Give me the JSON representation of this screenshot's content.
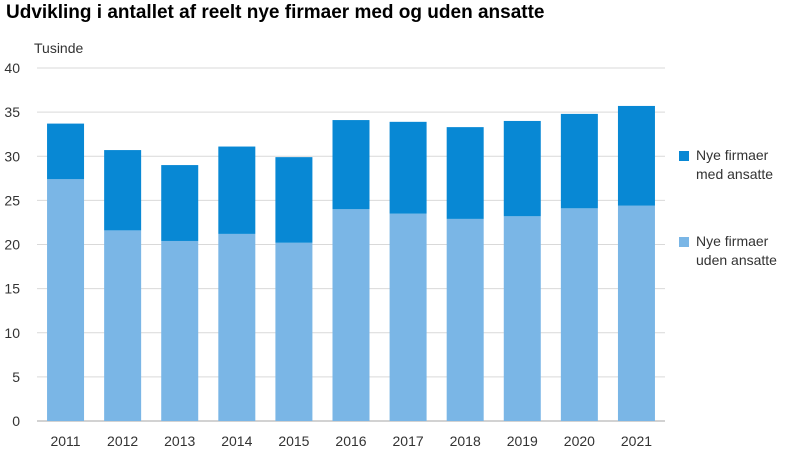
{
  "title": "Udvikling i antallet af reelt nye firmaer med og uden ansatte",
  "chart_data": {
    "type": "bar",
    "stacked": true,
    "title": "Udvikling i antallet af reelt nye firmaer med og uden ansatte",
    "ylabel": "Tusinde",
    "xlabel": "",
    "ylim": [
      0,
      40
    ],
    "yticks": [
      0,
      5,
      10,
      15,
      20,
      25,
      30,
      35,
      40
    ],
    "grid": true,
    "legend_position": "right",
    "categories": [
      "2011",
      "2012",
      "2013",
      "2014",
      "2015",
      "2016",
      "2017",
      "2018",
      "2019",
      "2020",
      "2021"
    ],
    "series": [
      {
        "name": "Nye firmaer uden ansatte",
        "legend_lines": [
          "Nye firmaer",
          "uden ansatte"
        ],
        "color": "#7ab6e6",
        "values": [
          27.4,
          21.6,
          20.4,
          21.2,
          20.2,
          24.0,
          23.5,
          22.9,
          23.2,
          24.1,
          24.4
        ]
      },
      {
        "name": "Nye firmaer med ansatte",
        "legend_lines": [
          "Nye firmaer",
          "med ansatte"
        ],
        "color": "#0888d4",
        "values": [
          6.3,
          9.1,
          8.6,
          9.9,
          9.7,
          10.1,
          10.4,
          10.4,
          10.8,
          10.7,
          11.3
        ]
      }
    ]
  }
}
